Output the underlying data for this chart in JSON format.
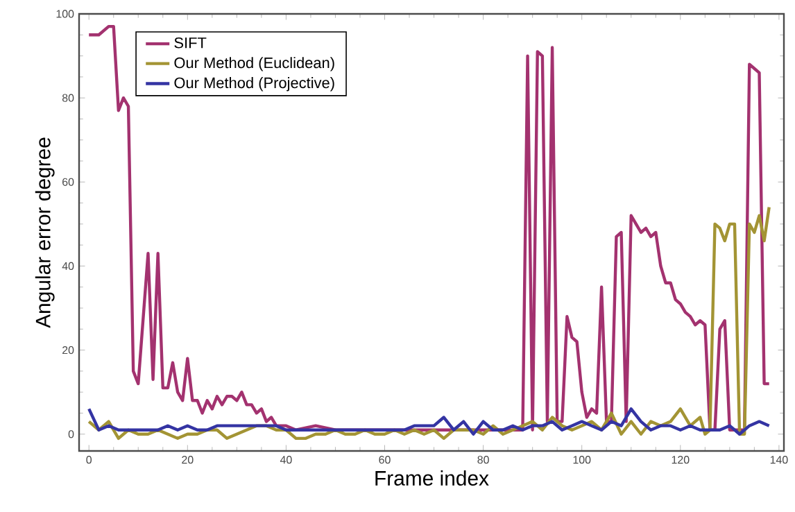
{
  "chart_data": {
    "type": "line",
    "xlabel": "Frame  index",
    "ylabel": "Angular error  degree",
    "xlim": [
      -2,
      141
    ],
    "ylim": [
      -4,
      100
    ],
    "xticks": [
      0,
      20,
      40,
      60,
      80,
      100,
      120,
      140
    ],
    "yticks": [
      0,
      20,
      40,
      60,
      80,
      100
    ],
    "grid": false,
    "legend": "top left",
    "marker": "none",
    "line_style": "solid",
    "series": [
      {
        "name": "SIFT",
        "color": "#a3326f",
        "x": [
          0,
          2,
          4,
          5,
          6,
          7,
          8,
          9,
          10,
          12,
          13,
          14,
          15,
          16,
          17,
          18,
          19,
          20,
          21,
          22,
          23,
          24,
          25,
          26,
          27,
          28,
          29,
          30,
          31,
          32,
          33,
          34,
          35,
          36,
          37,
          38,
          40,
          42,
          46,
          50,
          55,
          60,
          65,
          70,
          75,
          80,
          85,
          88,
          89,
          90,
          91,
          92,
          93,
          94,
          95,
          96,
          97,
          98,
          99,
          100,
          101,
          102,
          103,
          104,
          105,
          106,
          107,
          108,
          109,
          110,
          111,
          112,
          113,
          114,
          115,
          116,
          117,
          118,
          119,
          120,
          121,
          122,
          123,
          124,
          125,
          126,
          127,
          128,
          129,
          130,
          131,
          132,
          133,
          134,
          135,
          136,
          137,
          138
        ],
        "values": [
          95,
          95,
          97,
          97,
          77,
          80,
          78,
          15,
          12,
          43,
          13,
          43,
          11,
          11,
          17,
          10,
          8,
          18,
          8,
          8,
          5,
          8,
          6,
          9,
          7,
          9,
          9,
          8,
          10,
          7,
          7,
          5,
          6,
          3,
          4,
          2,
          2,
          1,
          2,
          1,
          1,
          1,
          1,
          1,
          1,
          1,
          1,
          1,
          90,
          1,
          91,
          90,
          3,
          92,
          3,
          3,
          28,
          23,
          22,
          10,
          4,
          6,
          5,
          35,
          3,
          3,
          47,
          48,
          3,
          52,
          50,
          48,
          49,
          47,
          48,
          40,
          36,
          36,
          32,
          31,
          29,
          28,
          26,
          27,
          26,
          1,
          1,
          25,
          27,
          1,
          1,
          1,
          1,
          88,
          87,
          86,
          12,
          12
        ]
      },
      {
        "name": "Our Method (Euclidean)",
        "color": "#a39434",
        "x": [
          0,
          2,
          4,
          6,
          8,
          10,
          12,
          14,
          16,
          18,
          20,
          22,
          24,
          26,
          28,
          30,
          32,
          34,
          36,
          38,
          40,
          42,
          44,
          46,
          48,
          50,
          52,
          54,
          56,
          58,
          60,
          62,
          64,
          66,
          68,
          70,
          72,
          74,
          76,
          78,
          80,
          82,
          84,
          86,
          88,
          90,
          92,
          94,
          96,
          98,
          100,
          102,
          104,
          106,
          108,
          110,
          112,
          114,
          116,
          118,
          120,
          122,
          124,
          125,
          126,
          127,
          128,
          129,
          130,
          131,
          132,
          133,
          134,
          135,
          136,
          137,
          138
        ],
        "values": [
          3,
          1,
          3,
          -1,
          1,
          0,
          0,
          1,
          0,
          -1,
          0,
          0,
          1,
          1,
          -1,
          0,
          1,
          2,
          2,
          1,
          1,
          -1,
          -1,
          0,
          0,
          1,
          0,
          0,
          1,
          0,
          0,
          1,
          0,
          1,
          0,
          1,
          -1,
          1,
          1,
          1,
          0,
          2,
          0,
          1,
          2,
          3,
          1,
          4,
          2,
          1,
          2,
          3,
          1,
          5,
          0,
          3,
          0,
          3,
          2,
          3,
          6,
          2,
          4,
          0,
          1,
          50,
          49,
          46,
          50,
          50,
          0,
          0,
          50,
          48,
          52,
          46,
          54
        ]
      },
      {
        "name": "Our Method (Projective)",
        "color": "#3434a3",
        "x": [
          0,
          2,
          4,
          6,
          8,
          10,
          12,
          14,
          16,
          18,
          20,
          22,
          24,
          26,
          28,
          30,
          32,
          34,
          36,
          38,
          40,
          42,
          44,
          46,
          48,
          50,
          52,
          54,
          56,
          58,
          60,
          62,
          64,
          66,
          68,
          70,
          72,
          74,
          76,
          78,
          80,
          82,
          84,
          86,
          88,
          90,
          92,
          94,
          96,
          98,
          100,
          102,
          104,
          106,
          108,
          110,
          112,
          114,
          116,
          118,
          120,
          122,
          124,
          126,
          128,
          130,
          132,
          134,
          136,
          138
        ],
        "values": [
          6,
          1,
          2,
          1,
          1,
          1,
          1,
          1,
          2,
          1,
          2,
          1,
          1,
          2,
          2,
          2,
          2,
          2,
          2,
          2,
          1,
          1,
          1,
          1,
          1,
          1,
          1,
          1,
          1,
          1,
          1,
          1,
          1,
          2,
          2,
          2,
          4,
          1,
          3,
          0,
          3,
          1,
          1,
          2,
          1,
          2,
          2,
          3,
          1,
          2,
          3,
          2,
          1,
          3,
          2,
          6,
          3,
          1,
          2,
          2,
          1,
          2,
          1,
          1,
          1,
          2,
          0,
          2,
          3,
          2
        ]
      }
    ]
  }
}
